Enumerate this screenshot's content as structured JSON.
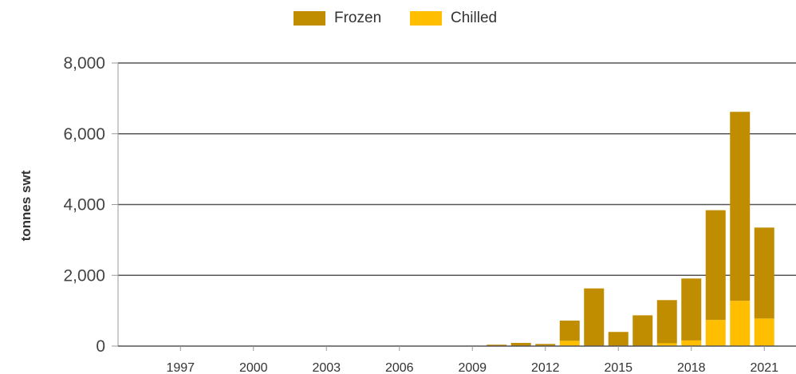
{
  "colors": {
    "frozen": "#C08C00",
    "chilled": "#FFBF00",
    "grid": "#555555",
    "axis": "#999999"
  },
  "chart_data": {
    "type": "bar",
    "stacked": true,
    "title": "",
    "xlabel": "",
    "ylabel": "tonnes swt",
    "ylim": [
      0,
      8000
    ],
    "y_ticks": [
      0,
      2000,
      4000,
      6000,
      8000
    ],
    "y_tick_labels": [
      "0",
      "2,000",
      "4,000",
      "6,000",
      "8,000"
    ],
    "x_tick_labels": [
      "1997",
      "2000",
      "2003",
      "2006",
      "2009",
      "2012",
      "2015",
      "2018",
      "2021"
    ],
    "grid": true,
    "legend_position": "top-center",
    "categories": [
      "1995",
      "1996",
      "1997",
      "1998",
      "1999",
      "2000",
      "2001",
      "2002",
      "2003",
      "2004",
      "2005",
      "2006",
      "2007",
      "2008",
      "2009",
      "2010",
      "2011",
      "2012",
      "2013",
      "2014",
      "2015",
      "2016",
      "2017",
      "2018",
      "2019",
      "2020",
      "2021"
    ],
    "series": [
      {
        "name": "Chilled",
        "values": [
          0,
          0,
          0,
          0,
          0,
          0,
          0,
          0,
          0,
          0,
          0,
          0,
          0,
          0,
          0,
          10,
          10,
          10,
          150,
          0,
          0,
          0,
          80,
          160,
          740,
          1280,
          780
        ]
      },
      {
        "name": "Frozen",
        "values": [
          0,
          0,
          0,
          0,
          0,
          0,
          0,
          0,
          0,
          0,
          0,
          0,
          0,
          0,
          0,
          30,
          80,
          50,
          570,
          1630,
          400,
          870,
          1220,
          1750,
          3100,
          5340,
          2570
        ]
      }
    ]
  },
  "legend": {
    "items": [
      {
        "label": "Frozen",
        "color_key": "frozen"
      },
      {
        "label": "Chilled",
        "color_key": "chilled"
      }
    ]
  }
}
